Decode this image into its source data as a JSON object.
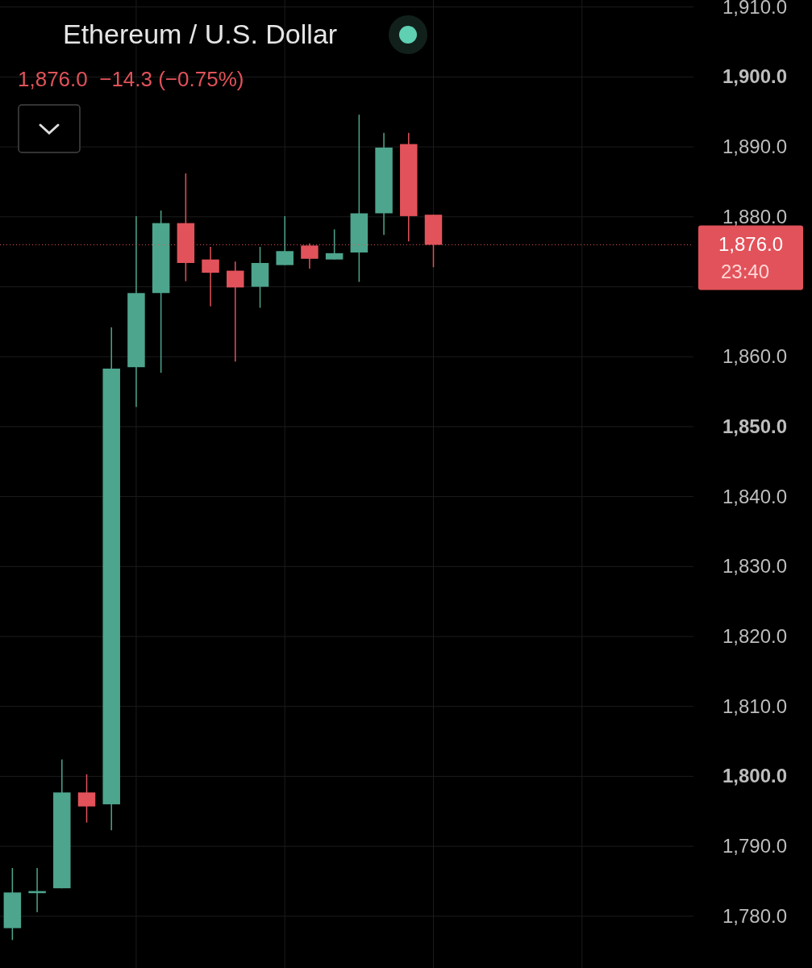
{
  "chart_data": {
    "type": "candlestick",
    "title": "Ethereum / U.S. Dollar",
    "subtitle": "1,876.0  −14.3 (−0.75%)",
    "categories": [
      null,
      null,
      null,
      null,
      null,
      null,
      null,
      null,
      null,
      null,
      null,
      null,
      null,
      null,
      null,
      null,
      null,
      null,
      null,
      null,
      null,
      null,
      null,
      null,
      null,
      null,
      null,
      null
    ],
    "ohlc": [
      [
        1778.3,
        1786.9,
        1776.6,
        1783.4
      ],
      [
        1783.3,
        1786.9,
        1780.6,
        1783.6
      ],
      [
        1784.0,
        1802.4,
        1784.0,
        1797.7
      ],
      [
        1797.7,
        1800.3,
        1793.4,
        1795.7
      ],
      [
        1796.0,
        1864.2,
        1792.3,
        1858.3
      ],
      [
        1858.5,
        1880.1,
        1852.8,
        1869.1
      ],
      [
        1869.1,
        1880.9,
        1857.7,
        1879.1
      ],
      [
        1879.1,
        1886.2,
        1870.8,
        1873.4
      ],
      [
        1873.9,
        1875.7,
        1867.2,
        1872.0
      ],
      [
        1872.3,
        1873.6,
        1859.3,
        1869.9
      ],
      [
        1870.0,
        1875.7,
        1867.0,
        1873.4
      ],
      [
        1873.1,
        1880.1,
        1873.1,
        1875.1
      ],
      [
        1875.9,
        1876.2,
        1872.6,
        1874.0
      ],
      [
        1873.9,
        1878.2,
        1873.9,
        1874.8
      ],
      [
        1874.9,
        1894.6,
        1870.7,
        1880.5
      ],
      [
        1880.5,
        1892.0,
        1877.4,
        1889.9
      ],
      [
        1890.4,
        1892.0,
        1876.5,
        1880.1
      ],
      [
        1880.3,
        1880.3,
        1872.8,
        1876.0
      ],
      null,
      null,
      null,
      null,
      null,
      null,
      null,
      null,
      null,
      null
    ],
    "colors": [
      "#4da58d",
      "#4da58d",
      "#4da58d",
      "#e2525a",
      "#4da58d",
      "#4da58d",
      "#4da58d",
      "#e2525a",
      "#e2525a",
      "#e2525a",
      "#4da58d",
      "#4da58d",
      "#e2525a",
      "#4da58d",
      "#4da58d",
      "#4da58d",
      "#e2525a",
      "#e2525a",
      null,
      null,
      null,
      null,
      null,
      null,
      null,
      null,
      null,
      null
    ],
    "ylim": [
      1772.6,
      1911
    ],
    "yticks": [
      {
        "value": 1780,
        "label": "1,780.0"
      },
      {
        "value": 1790,
        "label": "1,790.0"
      },
      {
        "value": 1800,
        "label": "1,800.0"
      },
      {
        "value": 1810,
        "label": "1,810.0"
      },
      {
        "value": 1820,
        "label": "1,820.0"
      },
      {
        "value": 1830,
        "label": "1,830.0"
      },
      {
        "value": 1840,
        "label": "1,840.0"
      },
      {
        "value": 1850,
        "label": "1,850.0"
      },
      {
        "value": 1860,
        "label": "1,860.0"
      },
      {
        "value": 1870,
        "label": null
      },
      {
        "value": 1880,
        "label": "1,880.0"
      },
      {
        "value": 1890,
        "label": "1,890.0"
      },
      {
        "value": 1900,
        "label": "1,900.0"
      },
      {
        "value": 1910,
        "label": "1,910.0"
      }
    ],
    "tick_labels": "y",
    "grid": true,
    "ref_lines": [
      {
        "axis": "y",
        "value": 1876.0,
        "label": "1,876.0",
        "color": "#e2525a",
        "line_style": "dotted"
      }
    ],
    "annotations": [
      "23:40"
    ]
  }
}
